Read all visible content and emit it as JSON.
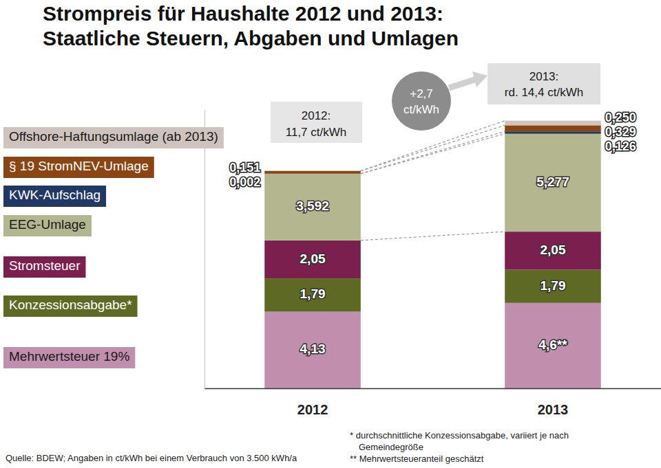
{
  "chart_data": {
    "type": "bar",
    "stacked": true,
    "data_labels": true,
    "tick_labels": "x",
    "legend": "left",
    "grid": false,
    "title": "Strompreis für Haushalte 2012 und 2013:",
    "subtitle": "Staatliche Steuern, Abgaben und Umlagen",
    "categories": [
      "2012",
      "2013"
    ],
    "ylim": [
      0,
      15
    ],
    "yticks": [],
    "series": [
      {
        "name": "Mehrwertsteuer 19%",
        "color": "#c08fae",
        "values": [
          4.13,
          4.6
        ],
        "value_labels": [
          "4,13",
          "4,6**"
        ]
      },
      {
        "name": "Konzessionsabgabe*",
        "color": "#5e6a24",
        "values": [
          1.79,
          1.79
        ],
        "value_labels": [
          "1,79",
          "1,79"
        ]
      },
      {
        "name": "Stromsteuer",
        "color": "#7b1f4f",
        "values": [
          2.05,
          2.05
        ],
        "value_labels": [
          "2,05",
          "2,05"
        ]
      },
      {
        "name": "EEG-Umlage",
        "color": "#b3b68f",
        "values": [
          3.592,
          5.277
        ],
        "value_labels": [
          "3,592",
          "5,277"
        ]
      },
      {
        "name": "KWK-Aufschlag",
        "color": "#1f3864",
        "values": [
          0.002,
          0.126
        ],
        "value_labels": [
          "0,002",
          "0,126"
        ]
      },
      {
        "name": "§ 19 StromNEV-Umlage",
        "color": "#8b4513",
        "values": [
          0.151,
          0.329
        ],
        "value_labels": [
          "0,151",
          "0,329"
        ]
      },
      {
        "name": "Offshore-Haftungsumlage (ab 2013)",
        "color": "#cfc3bd",
        "values": [
          null,
          0.25
        ],
        "value_labels": [
          null,
          "0,250"
        ]
      }
    ],
    "annotations": [
      {
        "lines": [
          "2012:",
          "11,7 ct/kWh"
        ]
      },
      {
        "lines": [
          "+2,7",
          "ct/kWh"
        ]
      },
      {
        "lines": [
          "2013:",
          "rd. 14,4 ct/kWh"
        ]
      }
    ],
    "source": "Quelle: BDEW; Angaben in ct/kWh bei einem Verbrauch von 3.500 kWh/a",
    "footnotes": [
      [
        "* durchschnittliche Konzessionsabgabe, variiert je nach",
        "Gemeindegröße"
      ],
      [
        "** Mehrwertsteueranteil geschätzt"
      ]
    ]
  }
}
